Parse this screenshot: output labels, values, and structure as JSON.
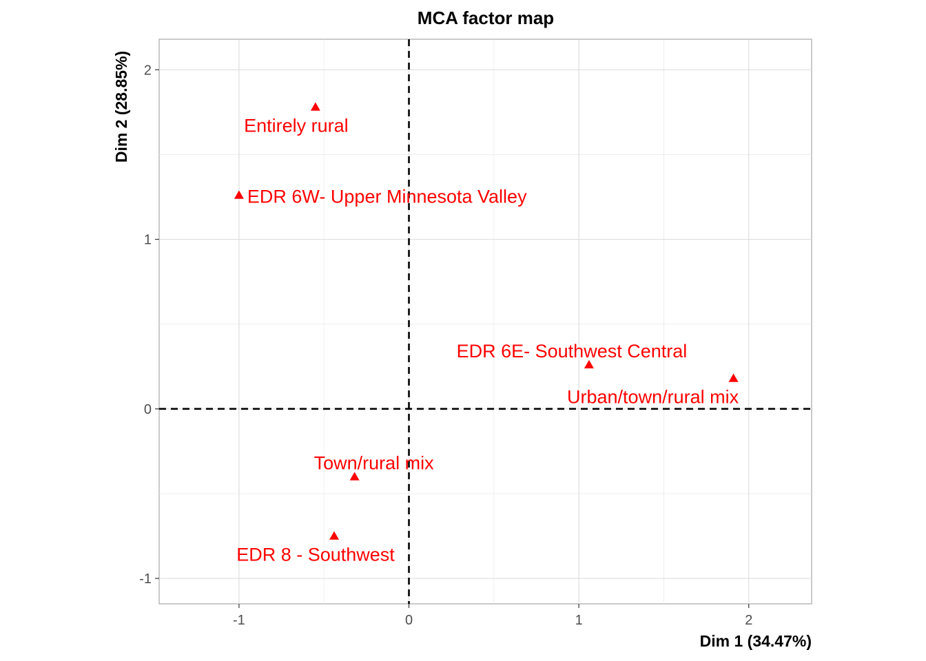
{
  "chart_data": {
    "type": "scatter",
    "title": "MCA factor map",
    "xlabel": "Dim 1 (34.47%)",
    "ylabel": "Dim 2 (28.85%)",
    "xlim": [
      -1.47,
      2.37
    ],
    "ylim": [
      -1.15,
      2.18
    ],
    "x_ticks": [
      -1,
      0,
      1,
      2
    ],
    "y_ticks": [
      -1,
      0,
      1,
      2
    ],
    "x_tick_labels": [
      "-1",
      "0",
      "1",
      "2"
    ],
    "y_tick_labels": [
      "-1",
      "0",
      "1",
      "2"
    ],
    "grid": true,
    "reference_lines": [
      {
        "axis": "x",
        "value": 0,
        "style": "dashed"
      },
      {
        "axis": "y",
        "value": 0,
        "style": "dashed"
      }
    ],
    "marker": "triangle",
    "point_color": "#ff0000",
    "points": [
      {
        "label": "Entirely rural",
        "x": -0.55,
        "y": 1.78
      },
      {
        "label": "EDR 6W- Upper Minnesota Valley",
        "x": -1.0,
        "y": 1.26
      },
      {
        "label": "EDR 6E- Southwest Central",
        "x": 1.06,
        "y": 0.26
      },
      {
        "label": "Urban/town/rural mix",
        "x": 1.91,
        "y": 0.18
      },
      {
        "label": "Town/rural mix",
        "x": -0.32,
        "y": -0.4
      },
      {
        "label": "EDR 8 - Southwest",
        "x": -0.44,
        "y": -0.75
      }
    ]
  }
}
